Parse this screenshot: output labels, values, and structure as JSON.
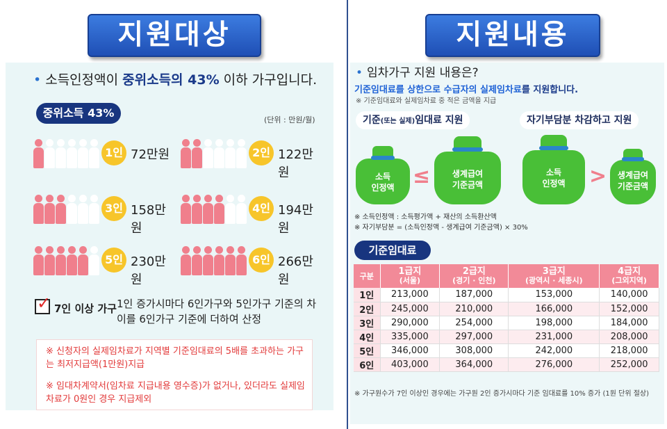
{
  "left": {
    "banner": "지원대상",
    "headline_pre": "소득인정액이 ",
    "headline_hl": "중위소득의 43%",
    "headline_post": " 이하 가구입니다.",
    "median_pill": "중위소득 43%",
    "unit": "(단위 : 만원/월)",
    "households": [
      {
        "badge": "1인",
        "amount": "72만원",
        "people": 1,
        "total": 6
      },
      {
        "badge": "2인",
        "amount": "122만원",
        "people": 2,
        "total": 6
      },
      {
        "badge": "3인",
        "amount": "158만원",
        "people": 3,
        "total": 6
      },
      {
        "badge": "4인",
        "amount": "194만원",
        "people": 4,
        "total": 6
      },
      {
        "badge": "5인",
        "amount": "230만원",
        "people": 5,
        "total": 6
      },
      {
        "badge": "6인",
        "amount": "266만원",
        "people": 6,
        "total": 6
      }
    ],
    "over7_label": "7인 이상 가구",
    "over7_text": "1인 증가시마다 6인가구와 5인가구 기준의 차이를 6인가구 기준에 더하여 산정",
    "note1": "※ 신청자의 실제임차료가 지역별 기준임대료의 5배를 초과하는 가구는 최저지급액(1만원)지급",
    "note2": "※ 임대차계약서(임차료 지급내용 영수증)가 없거나, 있더라도 실제임차료가 0원인 경우 지급제외"
  },
  "right": {
    "banner": "지원내용",
    "headline": "임차가구 지원 내용은?",
    "sub_pre": "기준임대료를 상한으로 수급자의 ",
    "sub_hl": "실제임차료",
    "sub_post": "를 지원합니다.",
    "small": "※ 기준임대료와 실제임차료 중 적은 금액을 지급",
    "label1_pre": "기준",
    "label1_sm": "(또는 실제)",
    "label1_post": "임대료 지원",
    "label2": "자기부담분 차감하고 지원",
    "bag_income": "소득\n인정액",
    "bag_income_a": "소득",
    "bag_income_b": "인정액",
    "bag_liv_a": "생계급여",
    "bag_liv_b": "기준금액",
    "op1": "≤",
    "op2": ">",
    "def1": "※ 소득인정액 : 소득평가액 + 재산의 소득환산액",
    "def2": "※ 자기부담분 = (소득인정액 - 생계급여 기준금액) × 30%",
    "base_pill": "기준임대료",
    "table": {
      "head0": "구분",
      "heads": [
        {
          "g": "1급지",
          "s": "(서울)"
        },
        {
          "g": "2급지",
          "s": "(경기 · 인천)"
        },
        {
          "g": "3급지",
          "s": "(광역시 · 세종시)"
        },
        {
          "g": "4급지",
          "s": "(그외지역)"
        }
      ],
      "rows": [
        [
          "1인",
          "213,000",
          "187,000",
          "153,000",
          "140,000"
        ],
        [
          "2인",
          "245,000",
          "210,000",
          "166,000",
          "152,000"
        ],
        [
          "3인",
          "290,000",
          "254,000",
          "198,000",
          "184,000"
        ],
        [
          "4인",
          "335,000",
          "297,000",
          "231,000",
          "208,000"
        ],
        [
          "5인",
          "346,000",
          "308,000",
          "242,000",
          "218,000"
        ],
        [
          "6인",
          "403,000",
          "364,000",
          "276,000",
          "252,000"
        ]
      ]
    },
    "foot": "※ 가구원수가 7인 이상인 경우에는 가구원 2인 증가시마다 기준 임대료를 10% 증가 (1원 단위 절상)"
  }
}
